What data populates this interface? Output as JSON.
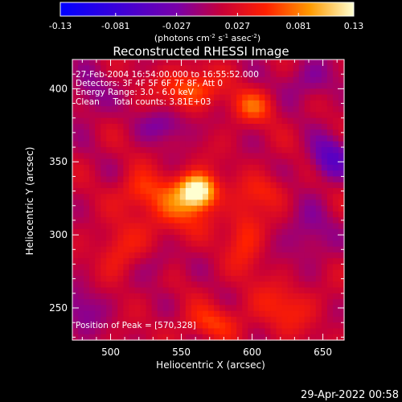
{
  "chart_data": {
    "type": "heatmap",
    "title": "Reconstructed RHESSI Image",
    "xlabel": "Heliocentric X (arcsec)",
    "ylabel": "Heliocentric Y (arcsec)",
    "xlim": [
      473,
      665
    ],
    "ylim": [
      228,
      420
    ],
    "x_ticks": [
      500,
      550,
      600,
      650
    ],
    "y_ticks": [
      250,
      300,
      350,
      400
    ],
    "colorbar": {
      "min": -0.13,
      "max": 0.13,
      "ticks": [
        "-0.13",
        "-0.081",
        "-0.027",
        "0.027",
        "0.081",
        "0.13"
      ],
      "unit_label_parts": [
        "(photons cm",
        "-2",
        " s",
        "-1",
        " asec",
        "-2",
        ")"
      ]
    },
    "annotations": [
      "27-Feb-2004 16:54:00.000 to 16:55:52.000",
      "Detectors: 3F 4F 5F 6F 7F 8F, Att 0",
      "Energy Range: 3.0 - 6.0 keV",
      "Clean     Total counts: 3.81E+03"
    ],
    "peak_label": "Position of Peak = [570,328]",
    "peak_position": [
      570,
      328
    ],
    "timestamp": "29-Apr-2022 00:58",
    "sources": [
      {
        "x": 562,
        "y": 330,
        "sx": 9,
        "sy": 8,
        "amp": 0.13
      },
      {
        "x": 545,
        "y": 318,
        "sx": 16,
        "sy": 14,
        "amp": 0.05
      },
      {
        "x": 556,
        "y": 400,
        "sx": 14,
        "sy": 9,
        "amp": 0.06
      },
      {
        "x": 600,
        "y": 388,
        "sx": 11,
        "sy": 8,
        "amp": 0.05
      },
      {
        "x": 595,
        "y": 300,
        "sx": 9,
        "sy": 18,
        "amp": 0.04
      },
      {
        "x": 520,
        "y": 330,
        "sx": 10,
        "sy": 9,
        "amp": 0.04
      },
      {
        "x": 505,
        "y": 288,
        "sx": 10,
        "sy": 12,
        "amp": 0.035
      },
      {
        "x": 622,
        "y": 250,
        "sx": 16,
        "sy": 12,
        "amp": 0.035
      },
      {
        "x": 570,
        "y": 240,
        "sx": 14,
        "sy": 8,
        "amp": 0.04
      },
      {
        "x": 610,
        "y": 330,
        "sx": 10,
        "sy": 8,
        "amp": 0.03
      },
      {
        "x": 655,
        "y": 352,
        "sx": 10,
        "sy": 10,
        "amp": -0.06
      },
      {
        "x": 540,
        "y": 375,
        "sx": 13,
        "sy": 8,
        "amp": -0.035
      },
      {
        "x": 485,
        "y": 395,
        "sx": 10,
        "sy": 12,
        "amp": -0.03
      },
      {
        "x": 640,
        "y": 300,
        "sx": 12,
        "sy": 14,
        "amp": -0.03
      },
      {
        "x": 480,
        "y": 250,
        "sx": 12,
        "sy": 12,
        "amp": -0.03
      },
      {
        "x": 535,
        "y": 280,
        "sx": 8,
        "sy": 8,
        "amp": -0.025
      },
      {
        "x": 640,
        "y": 405,
        "sx": 14,
        "sy": 10,
        "amp": -0.03
      }
    ]
  }
}
